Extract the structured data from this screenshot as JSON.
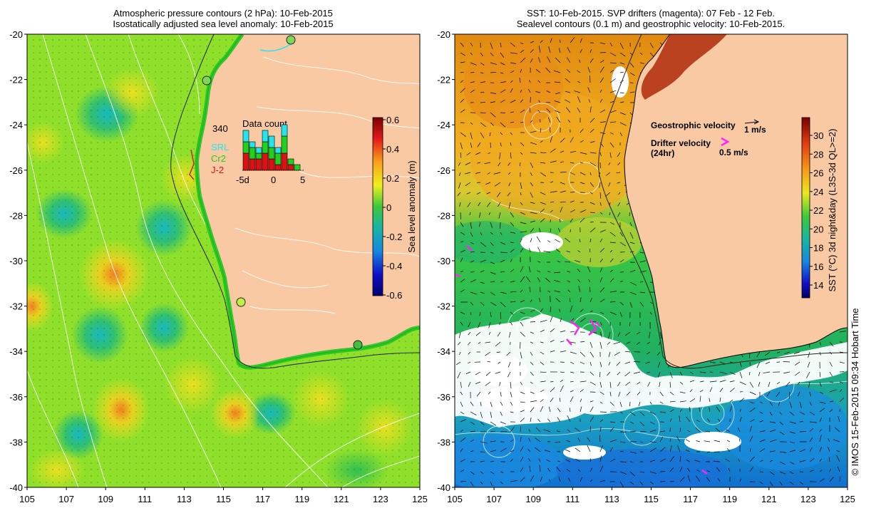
{
  "left_panel": {
    "title_line1": "Atmospheric pressure contours (2 hPa): 10-Feb-2015",
    "title_line2": "Isostatically adjusted sea level anomaly: 10-Feb-2015",
    "colorbar_label": "Sea level anomaly (m)",
    "colorbar_ticks": [
      "0.6",
      "0.4",
      "0.2",
      "0",
      "-0.2",
      "-0.4",
      "-0.6"
    ],
    "inset": {
      "count": "340",
      "title": "Data count",
      "legend": [
        {
          "label": "SRL",
          "color": "#22e5f0"
        },
        {
          "label": "Cr2",
          "color": "#1fd21f"
        },
        {
          "label": "J-2",
          "color": "#dd1111"
        }
      ],
      "x_ticks": [
        "-5d",
        "0",
        "5"
      ],
      "bars": [
        {
          "srl": 2,
          "cr2": 2,
          "j2": 3
        },
        {
          "srl": 1,
          "cr2": 2,
          "j2": 2
        },
        {
          "srl": 1,
          "cr2": 1,
          "j2": 2
        },
        {
          "srl": 2,
          "cr2": 2,
          "j2": 3
        },
        {
          "srl": 2,
          "cr2": 2,
          "j2": 2
        },
        {
          "srl": 1,
          "cr2": 2,
          "j2": 1
        },
        {
          "srl": 2,
          "cr2": 3,
          "j2": 3
        },
        {
          "srl": 0,
          "cr2": 1,
          "j2": 1
        },
        {
          "srl": 0,
          "cr2": 1,
          "j2": 0
        }
      ]
    }
  },
  "right_panel": {
    "title_line1": "SST: 10-Feb-2015. SVP drifters (magenta): 07 Feb - 12 Feb.",
    "title_line2": "Sealevel contours (0.1 m) and geostrophic velocity: 10-Feb-2015.",
    "colorbar_label": "SST (°C) 3d night&day (L3S-3d QL>=2)",
    "colorbar_ticks": [
      "30",
      "28",
      "26",
      "24",
      "22",
      "20",
      "18",
      "16",
      "14"
    ],
    "geo_label": "Geostrophic velocity",
    "geo_value": "1 m/s",
    "drifter_label": "Drifter velocity",
    "drifter_sub": "(24hr)",
    "drifter_value": "0.5 m/s",
    "drifter_color": "#ff22ff"
  },
  "axes": {
    "y_ticks": [
      "-20",
      "-22",
      "-24",
      "-26",
      "-28",
      "-30",
      "-32",
      "-34",
      "-36",
      "-38",
      "-40"
    ],
    "x_ticks": [
      "105",
      "107",
      "109",
      "111",
      "113",
      "115",
      "117",
      "119",
      "121",
      "123",
      "125"
    ]
  },
  "credit": "© IMOS 15-Feb-2015 09:34 Hobart Time",
  "colors": {
    "land": "#f9c9a3",
    "sla_bg": "#8fe02a",
    "sst_warm": "#f0a020",
    "sst_mid": "#2ec43a",
    "sst_cold": "#0f8ad8"
  }
}
